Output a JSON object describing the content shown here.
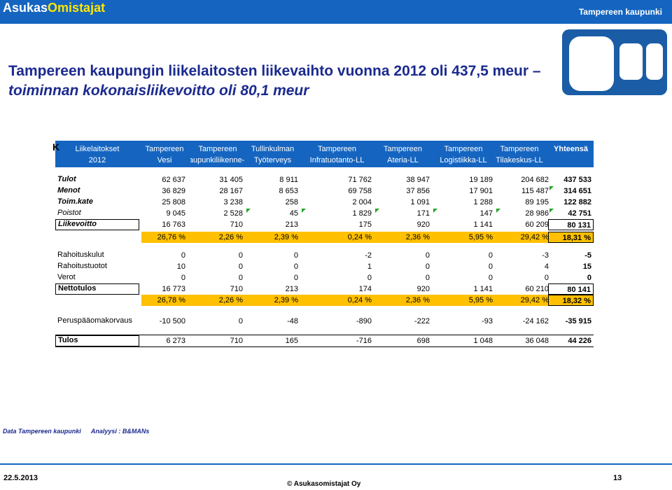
{
  "header": {
    "brand_part1": "Asukas",
    "brand_part2": "Omistajat",
    "city": "Tampereen kaupunki"
  },
  "title": {
    "line1": "Tampereen kaupungin liikelaitosten liikevaihto vuonna 2012 oli 437,5 meur –",
    "line2": "toiminnan kokonaisliikevoitto oli 80,1 meur"
  },
  "table": {
    "cut_label": "K",
    "columns": [
      {
        "line1": "Liikelaitokset",
        "line2": "2012"
      },
      {
        "line1": "Tampereen",
        "line2": "Vesi"
      },
      {
        "line1": "Tampereen",
        "line2": "Kaupunkiliikenne-"
      },
      {
        "line1": "Tullinkulman",
        "line2": "Työterveys"
      },
      {
        "line1": "Tampereen",
        "line2": "Infratuotanto-LL"
      },
      {
        "line1": "Tampereen",
        "line2": "Ateria-LL"
      },
      {
        "line1": "Tampereen",
        "line2": "Logistiikka-LL"
      },
      {
        "line1": "Tampereen",
        "line2": "Tilakeskus-LL"
      },
      {
        "line1": "Yhteensä",
        "line2": ""
      }
    ],
    "rows": [
      {
        "label": "Tulot",
        "values": [
          "62 637",
          "31 405",
          "8 911",
          "71 762",
          "38 947",
          "19 189",
          "204 682",
          "437 533"
        ]
      },
      {
        "label": "Menot",
        "values": [
          "36 829",
          "28 167",
          "8 653",
          "69 758",
          "37 856",
          "17 901",
          "115 487",
          "314 651"
        ]
      },
      {
        "label": "Toim.kate",
        "values": [
          "25 808",
          "3 238",
          "258",
          "2 004",
          "1 091",
          "1 288",
          "89 195",
          "122 882"
        ]
      },
      {
        "label": "Poistot",
        "values": [
          "9 045",
          "2 528",
          "45",
          "1 829",
          "171",
          "147",
          "28 986",
          "42 751"
        ]
      },
      {
        "label": "Liikevoitto",
        "values": [
          "16 763",
          "710",
          "213",
          "175",
          "920",
          "1 141",
          "60 209",
          "80 131"
        ]
      },
      {
        "label": "",
        "values": [
          "26,76 %",
          "2,26 %",
          "2,39 %",
          "0,24 %",
          "2,36 %",
          "5,95 %",
          "29,42 %",
          "18,31 %"
        ]
      },
      {
        "label": "Rahoituskulut",
        "values": [
          "0",
          "0",
          "0",
          "-2",
          "0",
          "0",
          "-3",
          "-5"
        ]
      },
      {
        "label": "Rahoitustuotot",
        "values": [
          "10",
          "0",
          "0",
          "1",
          "0",
          "0",
          "4",
          "15"
        ]
      },
      {
        "label": "Verot",
        "values": [
          "0",
          "0",
          "0",
          "0",
          "0",
          "0",
          "0",
          "0"
        ]
      },
      {
        "label": "Nettotulos",
        "values": [
          "16 773",
          "710",
          "213",
          "174",
          "920",
          "1 141",
          "60 210",
          "80 141"
        ]
      },
      {
        "label": "",
        "values": [
          "26,78 %",
          "2,26 %",
          "2,39 %",
          "0,24 %",
          "2,36 %",
          "5,95 %",
          "29,42 %",
          "18,32 %"
        ]
      },
      {
        "label": "Peruspääomakorvaus",
        "values": [
          "-10 500",
          "0",
          "-48",
          "-890",
          "-222",
          "-93",
          "-24 162",
          "-35 915"
        ]
      },
      {
        "label": "Tulos",
        "values": [
          "6 273",
          "710",
          "165",
          "-716",
          "698",
          "1 048",
          "36 048",
          "44 226"
        ]
      }
    ]
  },
  "footer": {
    "source": "Data Tampereen kaupunki",
    "analysis": "Analyysi : B&MANs",
    "date": "22.5.2013",
    "copyright": "© Asukasomistajat Oy",
    "page": "13"
  }
}
